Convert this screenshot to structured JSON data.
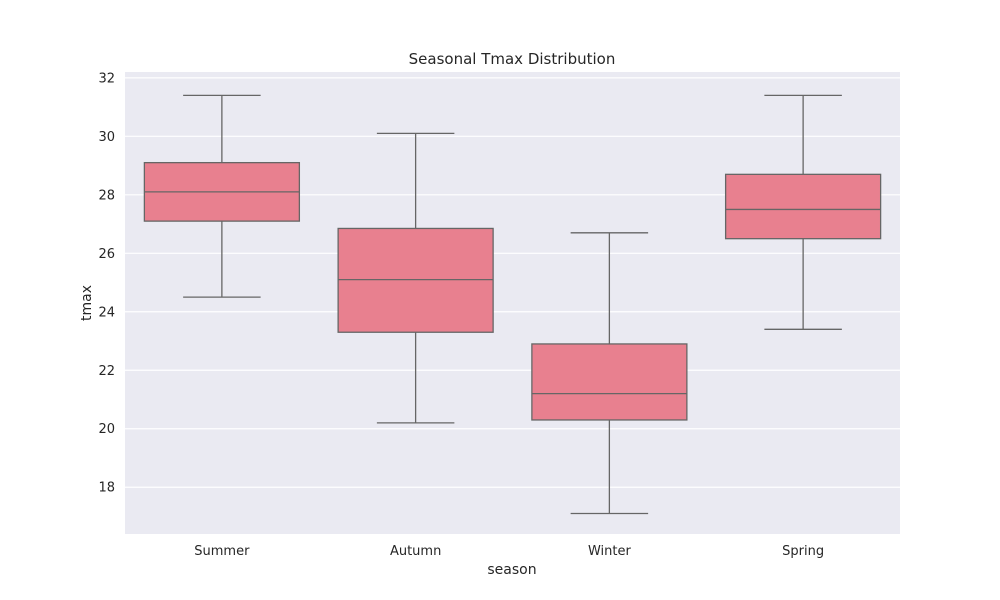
{
  "chart_data": {
    "type": "box",
    "title": "Seasonal Tmax Distribution",
    "xlabel": "season",
    "ylabel": "tmax",
    "ylim": [
      16.4,
      32.2
    ],
    "yticks": [
      18,
      20,
      22,
      24,
      26,
      28,
      30,
      32
    ],
    "grid": true,
    "box_color": "#e8808f",
    "line_color": "#666666",
    "background": "#eaeaf2",
    "categories": [
      "Summer",
      "Autumn",
      "Winter",
      "Spring"
    ],
    "boxes": [
      {
        "category": "Summer",
        "whisker_low": 24.5,
        "q1": 27.1,
        "median": 28.1,
        "q3": 29.1,
        "whisker_high": 31.4
      },
      {
        "category": "Autumn",
        "whisker_low": 20.2,
        "q1": 23.3,
        "median": 25.1,
        "q3": 26.85,
        "whisker_high": 30.1
      },
      {
        "category": "Winter",
        "whisker_low": 17.1,
        "q1": 20.3,
        "median": 21.2,
        "q3": 22.9,
        "whisker_high": 26.7
      },
      {
        "category": "Spring",
        "whisker_low": 23.4,
        "q1": 26.5,
        "median": 27.5,
        "q3": 28.7,
        "whisker_high": 31.4
      }
    ]
  }
}
